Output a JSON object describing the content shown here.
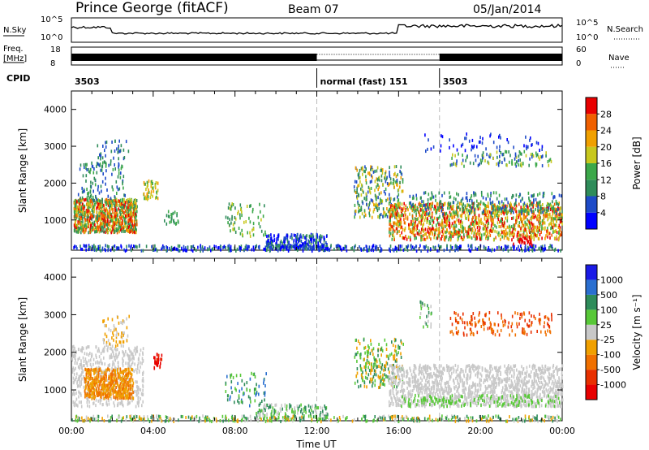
{
  "header": {
    "station": "Prince George (fitACF)",
    "beam": "Beam 07",
    "date": "05/Jan/2014"
  },
  "top_panels": {
    "nsky_label": "N.Sky",
    "nsky_ticks": [
      "10^5",
      "10^0"
    ],
    "nsearch_label": "N.Search",
    "nsearch_ticks": [
      "10^5",
      "10^0"
    ],
    "freq_label": "Freq.",
    "freq_unit": "[MHz]",
    "freq_ticks": [
      "18",
      "8"
    ],
    "nave_label": "Nave",
    "nave_ticks": [
      "60",
      "0"
    ],
    "cpid_label": "CPID",
    "cpid_segments": [
      {
        "label": "3503",
        "start_h": 0
      },
      {
        "label": "normal (fast) 151",
        "start_h": 12
      },
      {
        "label": "3503",
        "start_h": 18
      }
    ]
  },
  "chart_data": [
    {
      "type": "heatmap",
      "name": "power",
      "ylabel": "Slant Range [km]",
      "xlim_h": [
        0,
        24
      ],
      "ylim_km": [
        180,
        4500
      ],
      "yticks": [
        1000,
        2000,
        3000,
        4000
      ],
      "yticklabels": [
        "1000",
        "2000",
        "3000",
        "4000"
      ],
      "colorbar": {
        "label": "Power [dB]",
        "ticks": [
          "4",
          "8",
          "12",
          "16",
          "20",
          "24",
          "28"
        ],
        "colors": [
          "#0000ff",
          "#1e4bc8",
          "#2f8c5a",
          "#3ca84a",
          "#c8c81e",
          "#f0a000",
          "#f06000",
          "#e80000"
        ]
      }
    },
    {
      "type": "heatmap",
      "name": "velocity",
      "ylabel": "Slant Range [km]",
      "xlabel": "Time UT",
      "xlim_h": [
        0,
        24
      ],
      "ylim_km": [
        180,
        4500
      ],
      "yticks": [
        1000,
        2000,
        3000,
        4000
      ],
      "yticklabels": [
        "1000",
        "2000",
        "3000",
        "4000"
      ],
      "xticklabels": [
        "00:00",
        "04:00",
        "08:00",
        "12:00",
        "16:00",
        "20:00",
        "00:00"
      ],
      "colorbar": {
        "label": "Velocity [m s⁻¹]",
        "ticks": [
          "1000",
          "500",
          "100",
          "25",
          "-25",
          "-100",
          "-500",
          "-1000"
        ],
        "colors": [
          "#1a1ae6",
          "#2a6fd0",
          "#2e8c5a",
          "#58c838",
          "#c8c8c8",
          "#f0a000",
          "#f07000",
          "#e83000",
          "#e80000"
        ]
      }
    }
  ]
}
